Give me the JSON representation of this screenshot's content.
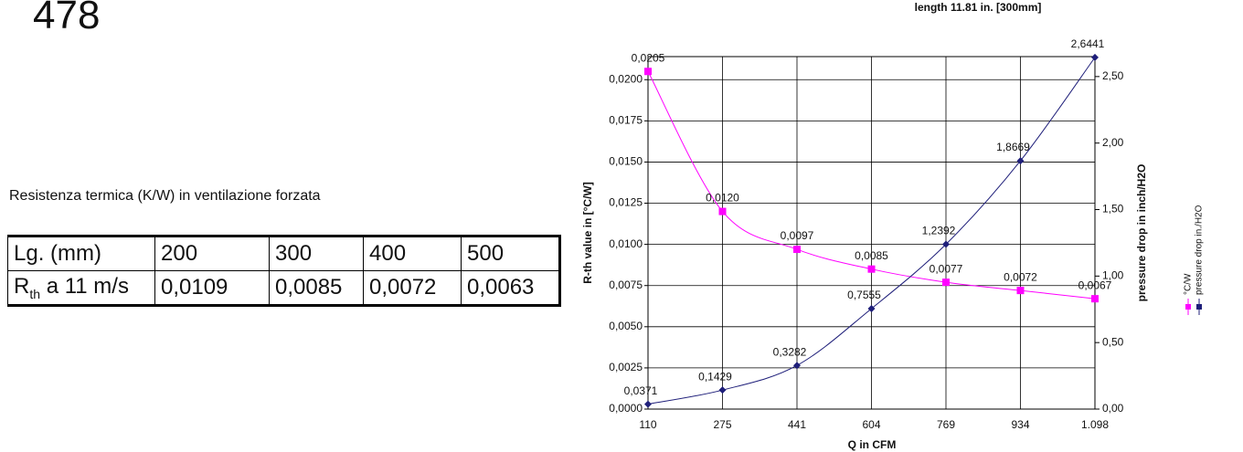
{
  "page": {
    "heading": "478",
    "table_caption": "Resistenza termica (K/W) in ventilazione forzata",
    "table": {
      "header": [
        "Lg. (mm)",
        "200",
        "300",
        "400",
        "500"
      ],
      "row_label": {
        "main": "R",
        "sub": "th",
        "rest": "a 11 m/s"
      },
      "row": [
        "0,0109",
        "0,0085",
        "0,0072",
        "0,0063"
      ]
    }
  },
  "chart_data": {
    "type": "line",
    "title": "length 11.81 in. [300mm]",
    "x_label": "Q in CFM",
    "y_label": "R-th value in [°C/W]",
    "y2_label": "pressure drop in inch/H2O",
    "categories": [
      "110",
      "275",
      "441",
      "604",
      "769",
      "934",
      "1.098"
    ],
    "series": [
      {
        "name": "°C/W",
        "color": "#ff00ff",
        "marker": "square",
        "values": [
          0.0205,
          0.012,
          0.0097,
          0.0085,
          0.0077,
          0.0072,
          0.0067
        ],
        "value_labels": [
          "0,0205",
          "0,0120",
          "0,0097",
          "0,0085",
          "0,0077",
          "0,0072",
          "0,0067"
        ]
      },
      {
        "name": "pressure drop in./H2O",
        "color": "#1f1f7a",
        "marker": "diamond",
        "axis": "y2",
        "values": [
          0.0371,
          0.1429,
          0.3282,
          0.7555,
          1.2392,
          1.8669,
          2.6441
        ],
        "value_labels": [
          "0,0371",
          "0,1429",
          "0,3282",
          "0,7555",
          "1,2392",
          "1,8669",
          "2,6441"
        ]
      }
    ],
    "ylim": [
      0,
      0.0214
    ],
    "yticks": [
      {
        "value": 0,
        "label": "0,0000"
      },
      {
        "value": 0.0025,
        "label": "0,0025"
      },
      {
        "value": 0.005,
        "label": "0,0050"
      },
      {
        "value": 0.0075,
        "label": "0,0075"
      },
      {
        "value": 0.01,
        "label": "0,0100"
      },
      {
        "value": 0.0125,
        "label": "0,0125"
      },
      {
        "value": 0.015,
        "label": "0,0150"
      },
      {
        "value": 0.0175,
        "label": "0,0175"
      },
      {
        "value": 0.02,
        "label": "0,0200"
      }
    ],
    "y2lim": [
      0,
      2.65
    ],
    "y2ticks": [
      {
        "value": 0,
        "label": "0,00"
      },
      {
        "value": 0.5,
        "label": "0,50"
      },
      {
        "value": 1,
        "label": "1,00"
      },
      {
        "value": 1.5,
        "label": "1,50"
      },
      {
        "value": 2,
        "label": "2,00"
      },
      {
        "value": 2.5,
        "label": "2,50"
      }
    ],
    "grid": true
  }
}
